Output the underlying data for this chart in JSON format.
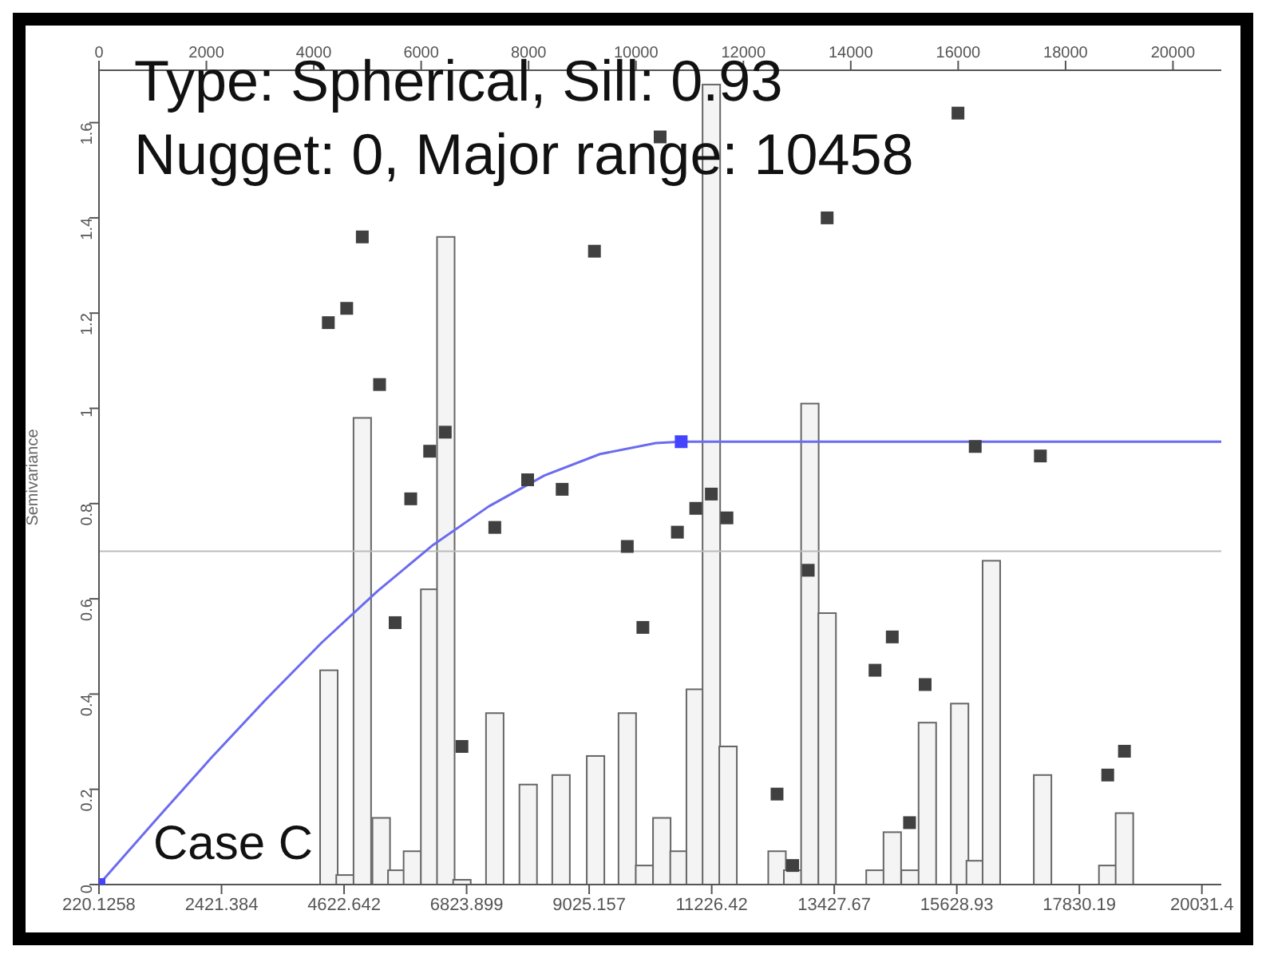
{
  "chart_data": {
    "type": "bar",
    "ylabel": "Semivariance",
    "annotations": [
      "Type: Spherical, Sill: 0.93",
      "Nugget: 0, Major range: 10458",
      "Case C"
    ],
    "xlim": [
      220.1258,
      20380
    ],
    "xticks": [
      220.1258,
      2421.384,
      4622.642,
      6823.899,
      9025.157,
      11226.42,
      13427.67,
      15628.93,
      17830.19,
      20031.4
    ],
    "x2lim": [
      0,
      20900
    ],
    "x2ticks": [
      0,
      2000,
      4000,
      6000,
      8000,
      10000,
      12000,
      14000,
      16000,
      18000,
      20000
    ],
    "ylim": [
      0,
      1.71
    ],
    "yticks": [
      0,
      0.2,
      0.4,
      0.6,
      0.8,
      1,
      1.2,
      1.4,
      1.6
    ],
    "ref_lines": [
      {
        "axis": "y",
        "value": 0.7,
        "color": "#bbbbbb"
      }
    ],
    "series": [
      {
        "color": "#f4f4f4",
        "x": [
          4350,
          4640,
          4950,
          5290,
          5570,
          5850,
          6160,
          6450,
          6740,
          7330,
          7930,
          8520,
          9140,
          9710,
          10020,
          10330,
          10640,
          10930,
          11220,
          11520,
          12400,
          12680,
          12990,
          13300,
          14160,
          14470,
          14790,
          15100,
          15680,
          15960,
          16250,
          17170,
          18340,
          18640
        ],
        "values": [
          0.45,
          0.02,
          0.98,
          0.14,
          0.03,
          0.07,
          0.62,
          1.36,
          0.01,
          0.36,
          0.21,
          0.23,
          0.27,
          0.36,
          0.04,
          0.14,
          0.07,
          0.41,
          1.68,
          0.29,
          0.07,
          0.03,
          1.01,
          0.57,
          0.03,
          0.11,
          0.03,
          0.34,
          0.38,
          0.05,
          0.68,
          0.23,
          0.04,
          0.15
        ]
      },
      {
        "type": "scatter",
        "color": "#404040",
        "marker": "square",
        "x": [
          4340,
          4670,
          4950,
          5260,
          5540,
          5820,
          6160,
          6440,
          6740,
          7330,
          7920,
          8540,
          9120,
          9710,
          9990,
          10300,
          10610,
          10940,
          11220,
          11500,
          12400,
          12680,
          12960,
          13300,
          14160,
          14470,
          14780,
          15060,
          15650,
          15960,
          17130,
          18340,
          18640
        ],
        "values": [
          1.18,
          1.21,
          1.36,
          1.05,
          0.55,
          0.81,
          0.91,
          0.95,
          0.29,
          0.75,
          0.85,
          0.83,
          1.33,
          0.71,
          0.54,
          1.57,
          0.74,
          0.79,
          0.82,
          0.77,
          0.19,
          0.04,
          0.66,
          1.4,
          0.45,
          0.52,
          0.13,
          0.42,
          1.62,
          0.92,
          0.9,
          0.23,
          0.28
        ]
      },
      {
        "type": "line",
        "color": "#6b6bf0",
        "marker": "none",
        "x": [
          220.1258,
          1220,
          2220,
          3220,
          4220,
          5220,
          6220,
          7220,
          8220,
          9220,
          10220,
          10678,
          20380
        ],
        "values": [
          0,
          0.133,
          0.264,
          0.389,
          0.508,
          0.616,
          0.713,
          0.794,
          0.859,
          0.904,
          0.927,
          0.93,
          0.93
        ]
      },
      {
        "type": "scatter",
        "color": "#4444ff",
        "marker": "square",
        "x": [
          220.1258,
          10678
        ],
        "values": [
          0,
          0.93
        ]
      }
    ]
  }
}
